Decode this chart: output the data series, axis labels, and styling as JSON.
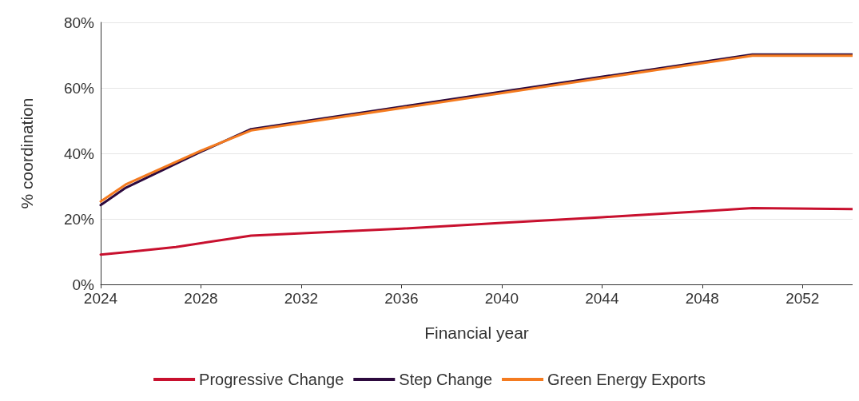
{
  "chart_data": {
    "type": "line",
    "xlabel": "Financial year",
    "ylabel": "% coordination",
    "xlim": [
      2024,
      2054
    ],
    "xticks": [
      2024,
      2028,
      2032,
      2036,
      2040,
      2044,
      2048,
      2052
    ],
    "ylim": [
      0,
      80
    ],
    "yticks": [
      {
        "value": 0,
        "label": "0%"
      },
      {
        "value": 20,
        "label": "20%"
      },
      {
        "value": 40,
        "label": "40%"
      },
      {
        "value": 60,
        "label": "60%"
      },
      {
        "value": 80,
        "label": "80%"
      }
    ],
    "grid": "y",
    "legend": "bottom",
    "marker": "none",
    "line_style": "solid",
    "series": [
      {
        "name": "Progressive Change",
        "color": "#c8102e",
        "x": [
          2024,
          2025,
          2027,
          2030,
          2036,
          2040,
          2044,
          2048,
          2050,
          2054
        ],
        "values": [
          9.1,
          9.8,
          11.4,
          14.9,
          17,
          18.8,
          20.5,
          22.3,
          23.3,
          23
        ]
      },
      {
        "name": "Step Change",
        "color": "#2d0a3e",
        "x": [
          2024,
          2025,
          2028,
          2030,
          2050,
          2054
        ],
        "values": [
          24.2,
          29.5,
          40.5,
          47.4,
          70.2,
          70.2
        ]
      },
      {
        "name": "Green Energy Exports",
        "color": "#f47b20",
        "x": [
          2024,
          2025,
          2028,
          2030,
          2050,
          2054
        ],
        "values": [
          25.3,
          30.5,
          40.8,
          47,
          69.8,
          69.8
        ]
      }
    ]
  }
}
